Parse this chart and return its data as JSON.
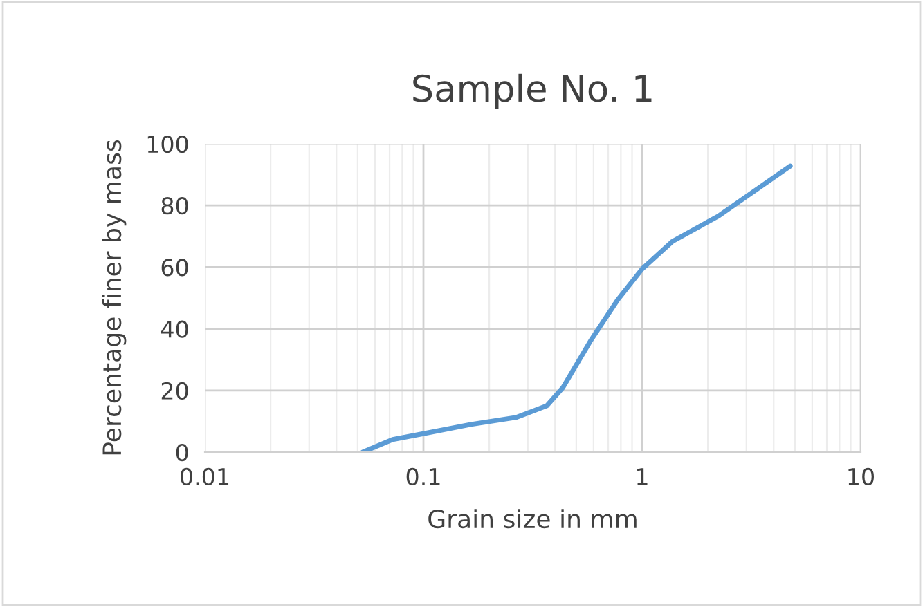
{
  "chart_data": {
    "type": "line",
    "title": "Sample No. 1",
    "xlabel": "Grain size in mm",
    "ylabel": "Percentage finer by mass",
    "x": [
      0.0527,
      0.0723,
      0.1,
      0.165,
      0.267,
      0.366,
      0.435,
      0.58,
      0.777,
      1.0,
      1.38,
      2.25,
      4.76
    ],
    "series": [
      {
        "color": "#5b9bd5",
        "values": [
          0,
          4.1,
          6.0,
          9.0,
          11.3,
          15,
          21,
          36,
          49.6,
          59.4,
          68.4,
          76.7,
          92.8
        ]
      }
    ],
    "log": "x",
    "xlim": [
      0.01,
      10
    ],
    "xticks": [
      0.01,
      0.1,
      1,
      10
    ],
    "ylim": [
      0,
      100
    ],
    "yticks": [
      0,
      20,
      40,
      60,
      80,
      100
    ],
    "grid": true,
    "marker": "none",
    "line_style": "solid"
  }
}
